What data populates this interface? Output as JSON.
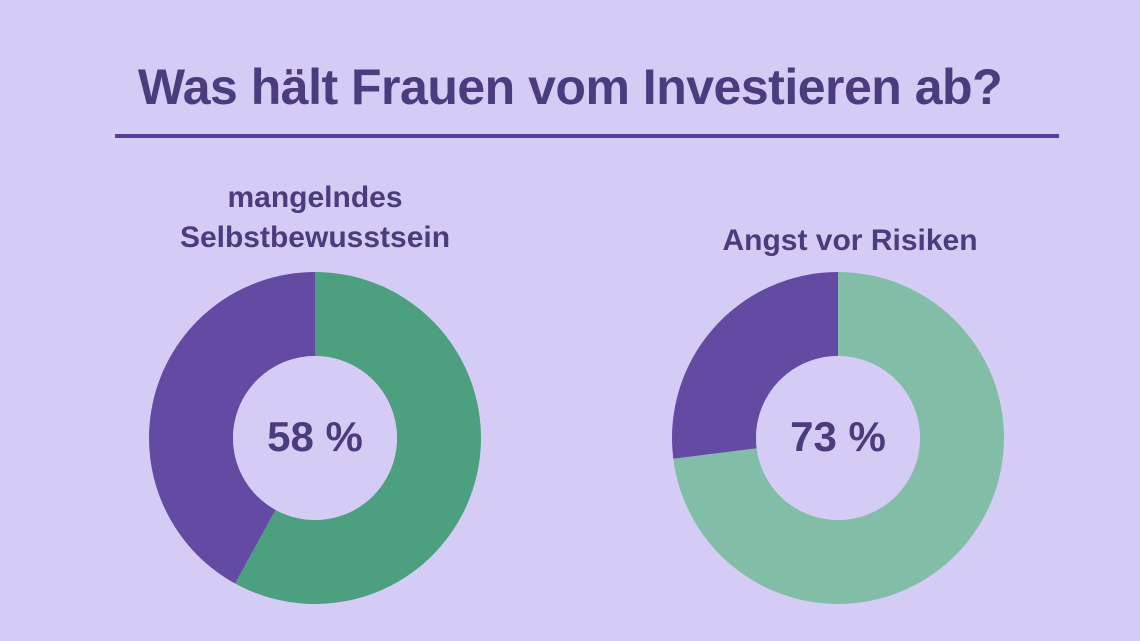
{
  "title": "Was hält Frauen vom Investieren ab?",
  "colors": {
    "background": "#d5ccf5",
    "text": "#4b3c7d",
    "rule": "#5a3f9a",
    "purple": "#634aa3",
    "green_dark": "#4c9f7f",
    "green_light": "#82bea7"
  },
  "chart_data": [
    {
      "type": "pie",
      "title": "mangelndes Selbstbewusstsein",
      "title_lines": [
        "mangelndes",
        "Selbstbewusstsein"
      ],
      "center_label": "58 %",
      "slices": [
        {
          "value": 58,
          "color": "#4c9f7f"
        },
        {
          "value": 42,
          "color": "#634aa3"
        }
      ]
    },
    {
      "type": "pie",
      "title": "Angst vor Risiken",
      "title_lines": [
        "Angst vor Risiken"
      ],
      "center_label": "73 %",
      "slices": [
        {
          "value": 73,
          "color": "#82bea7"
        },
        {
          "value": 27,
          "color": "#634aa3"
        }
      ]
    }
  ]
}
